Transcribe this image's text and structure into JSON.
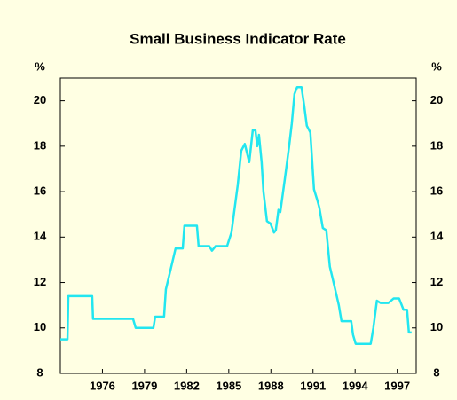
{
  "chart_data": {
    "type": "line",
    "title": "Small Business Indicator Rate",
    "y_unit": "%",
    "xlim": [
      1973,
      1998.35
    ],
    "xticks": [
      1976,
      1979,
      1982,
      1985,
      1988,
      1991,
      1994,
      1997
    ],
    "ylim": [
      8,
      21
    ],
    "yticks": [
      8,
      10,
      12,
      14,
      16,
      18,
      20
    ],
    "grid": false,
    "series": [
      {
        "name": "Small Business Indicator Rate",
        "color": "#22e6f0",
        "x": [
          1973.0,
          1973.51,
          1973.57,
          1975.27,
          1975.33,
          1978.18,
          1978.37,
          1979.63,
          1979.76,
          1980.39,
          1980.52,
          1980.83,
          1981.21,
          1981.72,
          1981.84,
          1982.73,
          1982.85,
          1983.61,
          1983.8,
          1984.06,
          1984.88,
          1985.19,
          1985.64,
          1985.89,
          1986.14,
          1986.46,
          1986.71,
          1986.9,
          1987.03,
          1987.15,
          1987.34,
          1987.47,
          1987.72,
          1987.97,
          1988.22,
          1988.35,
          1988.54,
          1988.67,
          1988.98,
          1989.3,
          1989.49,
          1989.68,
          1989.87,
          1990.18,
          1990.37,
          1990.56,
          1990.81,
          1991.07,
          1991.32,
          1991.45,
          1991.7,
          1991.95,
          1992.2,
          1992.58,
          1992.84,
          1993.03,
          1993.72,
          1993.85,
          1994.04,
          1995.11,
          1995.3,
          1995.55,
          1995.81,
          1996.37,
          1996.75,
          1997.13,
          1997.45,
          1997.7,
          1997.83,
          1998.02
        ],
        "values": [
          9.5,
          9.5,
          11.4,
          11.4,
          10.4,
          10.4,
          10.0,
          10.0,
          10.5,
          10.5,
          11.7,
          12.5,
          13.5,
          13.5,
          14.5,
          14.5,
          13.6,
          13.6,
          13.4,
          13.6,
          13.6,
          14.2,
          16.3,
          17.8,
          18.1,
          17.3,
          18.7,
          18.7,
          18.0,
          18.5,
          17.3,
          16.0,
          14.7,
          14.6,
          14.2,
          14.3,
          15.2,
          15.1,
          16.5,
          18.0,
          19.0,
          20.3,
          20.6,
          20.6,
          19.8,
          18.9,
          18.6,
          16.1,
          15.6,
          15.3,
          14.4,
          14.3,
          12.7,
          11.7,
          11.0,
          10.3,
          10.3,
          9.7,
          9.3,
          9.3,
          10.0,
          11.2,
          11.1,
          11.1,
          11.3,
          11.3,
          10.8,
          10.8,
          9.8,
          9.8
        ]
      }
    ]
  }
}
